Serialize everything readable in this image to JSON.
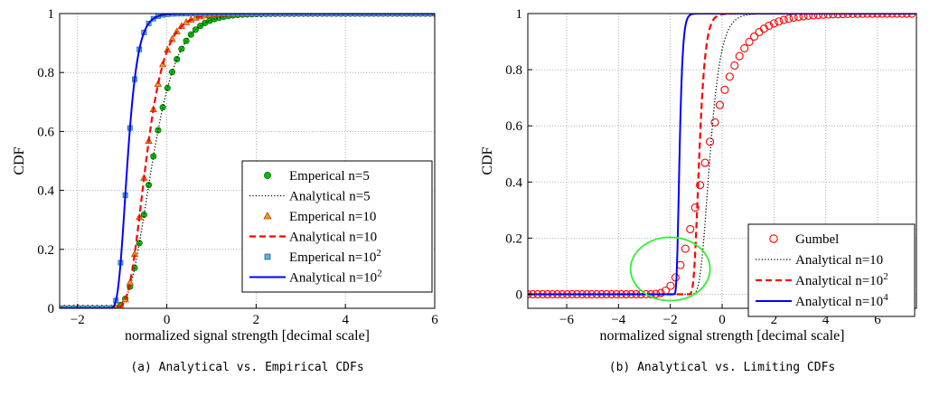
{
  "chart_data": [
    {
      "type": "line",
      "xlabel": "normalized signal strength [decimal scale]",
      "ylabel": "CDF",
      "xlim": [
        -2.4,
        6
      ],
      "ylim": [
        0,
        1
      ],
      "xticks": [
        -2,
        0,
        2,
        4,
        6
      ],
      "yticks": [
        0,
        0.2,
        0.4,
        0.6,
        0.8,
        1
      ],
      "grid": true,
      "legend_position": "bottom-right",
      "caption": "(a) Analytical vs. Empirical CDFs",
      "series": [
        {
          "name": "Emperical n=5",
          "style": "markers",
          "marker": "circle",
          "color": "#00c000",
          "n": 5
        },
        {
          "name": "Analytical n=5",
          "style": "dotted",
          "color": "#000000",
          "n": 5
        },
        {
          "name": "Emperical n=10",
          "style": "markers",
          "marker": "triangle",
          "color": "#d03c00",
          "n": 10
        },
        {
          "name": "Analytical n=10",
          "style": "dashed",
          "color": "#ff0000",
          "n": 10
        },
        {
          "name": "Emperical n=10",
          "name_sup": "2",
          "style": "markers",
          "marker": "square",
          "color": "#2b8ad8",
          "n": 100
        },
        {
          "name": "Analytical n=10",
          "name_sup": "2",
          "style": "solid",
          "color": "#0000ff",
          "n": 100
        }
      ]
    },
    {
      "type": "line",
      "xlabel": "normalized signal strength [decimal scale]",
      "ylabel": "CDF",
      "xlim": [
        -7.5,
        7.5
      ],
      "ylim": [
        -0.05,
        1
      ],
      "xticks": [
        -6,
        -4,
        -2,
        0,
        2,
        4,
        6
      ],
      "yticks": [
        0,
        0.2,
        0.4,
        0.6,
        0.8,
        1
      ],
      "grid": true,
      "legend_position": "bottom-right",
      "annotation": "green ellipse highlighting lower tail near x = -2",
      "annotation_color": "#33ee33",
      "caption": "(b) Analytical vs. Limiting CDFs",
      "series": [
        {
          "name": "Gumbel",
          "style": "markers",
          "marker": "open-circle",
          "color": "#ff0000"
        },
        {
          "name": "Analytical n=10",
          "style": "dotted",
          "color": "#000000",
          "n": 10
        },
        {
          "name": "Analytical n=10",
          "name_sup": "2",
          "style": "dashed",
          "color": "#ff0000",
          "n": 100
        },
        {
          "name": "Analytical n=10",
          "name_sup": "4",
          "style": "solid",
          "color": "#0000ff",
          "n": 10000
        }
      ]
    }
  ]
}
